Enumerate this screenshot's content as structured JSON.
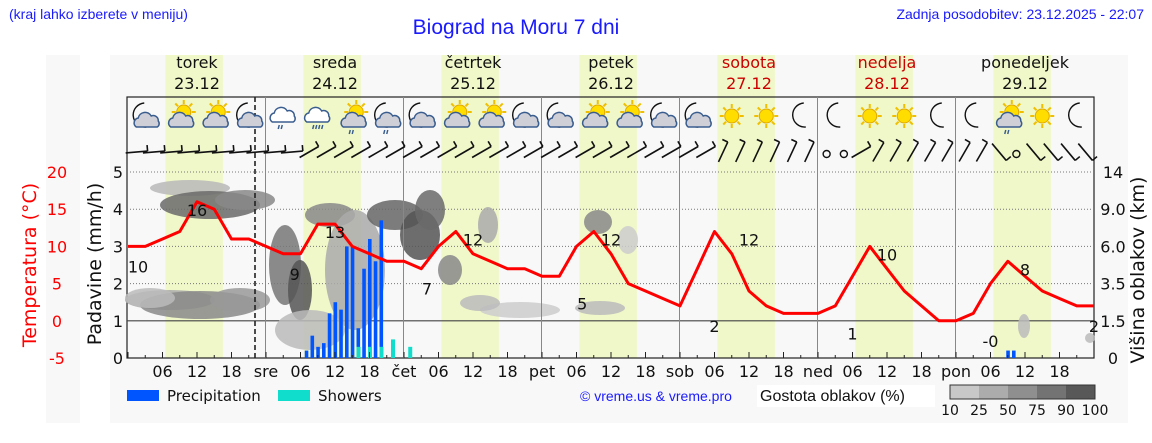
{
  "header": {
    "hint": "(kraj lahko izberete v meniju)",
    "title": "Biograd na Moru 7 dni",
    "updated": "Zadnja posodobitev: 23.12.2025 - 22:07"
  },
  "days": [
    {
      "name": "torek",
      "date": "23.12",
      "weekend": false
    },
    {
      "name": "sreda",
      "date": "24.12",
      "weekend": false
    },
    {
      "name": "četrtek",
      "date": "25.12",
      "weekend": false
    },
    {
      "name": "petek",
      "date": "26.12",
      "weekend": false
    },
    {
      "name": "sobota",
      "date": "27.12",
      "weekend": true
    },
    {
      "name": "nedelja",
      "date": "28.12",
      "weekend": true
    },
    {
      "name": "ponedeljek",
      "date": "29.12",
      "weekend": false
    }
  ],
  "day_abbrev": [
    "",
    "sre",
    "čet",
    "pet",
    "sob",
    "ned",
    "pon"
  ],
  "hour_labels": [
    "06",
    "12",
    "18"
  ],
  "axes": {
    "temp_label": "Temperatura (°C)",
    "temp_ticks": [
      "20",
      "15",
      "10",
      "5",
      "0",
      "-5"
    ],
    "precip_label": "Padavine (mm/h)",
    "precip_ticks": [
      "5",
      "4",
      "3",
      "2",
      "1",
      "0"
    ],
    "cloud_label": "Višina oblakov (km)",
    "cloud_ticks": [
      "14",
      "9.0",
      "6.0",
      "3.5",
      "1.5",
      "0"
    ]
  },
  "legend": {
    "precipitation": "Precipitation",
    "showers": "Showers",
    "credit": "© vreme.us & vreme.pro",
    "cloud_density": "Gostota oblakov (%)",
    "density_ticks": [
      "10",
      "25",
      "50",
      "75",
      "90",
      "100"
    ]
  },
  "colors": {
    "temperature": "#ff0000",
    "precipitation": "#0055ff",
    "showers": "#11ddcc",
    "weekend": "#cc0000",
    "daylight": "#f0f7c8",
    "header_text": "#1a1aff"
  },
  "icons": [
    "moon-cloud",
    "sun-cloud",
    "sun-cloud",
    "moon-cloud",
    "cloud-rain",
    "cloud-heavy-rain",
    "sun-cloud-rain",
    "moon-cloud-rain",
    "moon-cloud",
    "sun-cloud",
    "sun-cloud",
    "moon-cloud",
    "moon-cloud",
    "sun-cloud",
    "sun-cloud",
    "moon-cloud",
    "moon-cloud",
    "sun",
    "sun",
    "moon",
    "moon",
    "sun",
    "sun",
    "moon",
    "moon",
    "sun-cloud-rain",
    "sun",
    "moon"
  ],
  "chart_data": {
    "type": "line",
    "title": "Biograd na Moru 7 dni",
    "xlabel": "",
    "x_unit": "hour since 23.12 00:00",
    "now_marker_hour": 22,
    "series": [
      {
        "name": "Temperatura (°C)",
        "axis": "left",
        "ylim": [
          -5,
          20
        ],
        "x": [
          0,
          3,
          6,
          9,
          12,
          15,
          18,
          21,
          24,
          27,
          30,
          33,
          36,
          39,
          42,
          45,
          48,
          51,
          54,
          57,
          60,
          63,
          66,
          69,
          72,
          75,
          78,
          81,
          84,
          87,
          90,
          93,
          96,
          99,
          102,
          105,
          108,
          111,
          114,
          117,
          120,
          123,
          126,
          129,
          132,
          135,
          138,
          141,
          144,
          147,
          150,
          153,
          156,
          159,
          162,
          165,
          168
        ],
        "values": [
          10,
          10,
          11,
          12,
          16,
          15,
          11,
          11,
          10,
          9,
          9,
          13,
          13,
          10,
          9,
          8,
          8,
          7,
          10,
          12,
          9,
          8,
          7,
          7,
          6,
          6,
          10,
          12,
          9,
          5,
          4,
          3,
          2,
          7,
          12,
          9,
          4,
          2,
          1,
          1,
          1,
          2,
          6,
          10,
          7,
          4,
          2,
          0,
          0,
          1,
          5,
          8,
          6,
          4,
          3,
          2,
          2
        ]
      },
      {
        "name": "Precipitation",
        "axis": "precip",
        "ylim": [
          0,
          5
        ],
        "x": [
          31,
          32,
          33,
          34,
          35,
          36,
          37,
          38,
          39,
          40,
          41,
          42,
          43,
          44,
          45,
          46,
          47,
          153,
          154
        ],
        "values": [
          0.2,
          0.6,
          0.3,
          0.4,
          1.2,
          1.5,
          1.3,
          3.0,
          3.0,
          0.8,
          2.4,
          3.2,
          2.6,
          3.7,
          0,
          0,
          0,
          0.2,
          0.2
        ]
      },
      {
        "name": "Showers",
        "axis": "precip",
        "ylim": [
          0,
          5
        ],
        "x": [
          40,
          42,
          44,
          46,
          49
        ],
        "values": [
          0.3,
          0.3,
          0.3,
          0.5,
          0.3
        ]
      }
    ],
    "temperature_labels": [
      {
        "x": 0,
        "value": "10"
      },
      {
        "x": 12,
        "value": "16"
      },
      {
        "x": 29,
        "value": "9"
      },
      {
        "x": 36,
        "value": "13"
      },
      {
        "x": 52,
        "value": "7"
      },
      {
        "x": 60,
        "value": "12"
      },
      {
        "x": 79,
        "value": "5"
      },
      {
        "x": 84,
        "value": "12"
      },
      {
        "x": 102,
        "value": "2"
      },
      {
        "x": 108,
        "value": "12"
      },
      {
        "x": 126,
        "value": "1"
      },
      {
        "x": 132,
        "value": "10"
      },
      {
        "x": 150,
        "value": "-0"
      },
      {
        "x": 156,
        "value": "8"
      },
      {
        "x": 168,
        "value": "2"
      }
    ],
    "cloud_height_ticks_km": [
      0,
      1.5,
      3.5,
      6.0,
      9.0,
      14
    ],
    "precip_ylim": [
      0,
      5
    ],
    "temp_ylim": [
      -5,
      20
    ],
    "grid": true,
    "legend_position": "bottom"
  }
}
